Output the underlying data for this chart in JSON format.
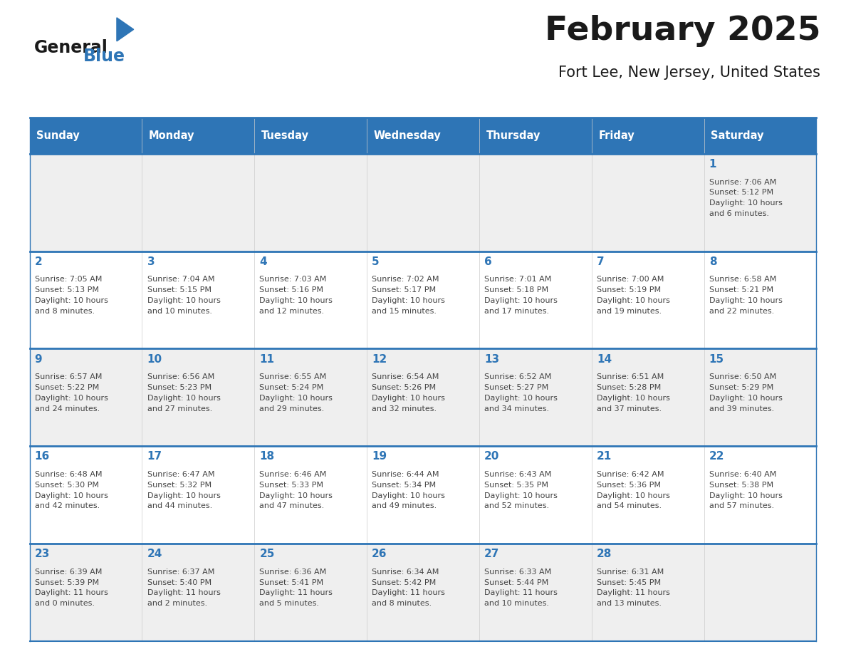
{
  "title": "February 2025",
  "subtitle": "Fort Lee, New Jersey, United States",
  "header_bg": "#2E75B6",
  "header_text_color": "#FFFFFF",
  "weekdays": [
    "Sunday",
    "Monday",
    "Tuesday",
    "Wednesday",
    "Thursday",
    "Friday",
    "Saturday"
  ],
  "background_color": "#FFFFFF",
  "cell_bg_odd_row": "#EFEFEF",
  "cell_bg_even_row": "#FFFFFF",
  "day_number_color": "#2E75B6",
  "text_color": "#444444",
  "line_color": "#2E75B6",
  "logo_general_color": "#1a1a1a",
  "logo_blue_color": "#2E75B6",
  "title_color": "#1a1a1a",
  "calendar": [
    [
      {
        "day": null,
        "info": null
      },
      {
        "day": null,
        "info": null
      },
      {
        "day": null,
        "info": null
      },
      {
        "day": null,
        "info": null
      },
      {
        "day": null,
        "info": null
      },
      {
        "day": null,
        "info": null
      },
      {
        "day": 1,
        "info": "Sunrise: 7:06 AM\nSunset: 5:12 PM\nDaylight: 10 hours\nand 6 minutes."
      }
    ],
    [
      {
        "day": 2,
        "info": "Sunrise: 7:05 AM\nSunset: 5:13 PM\nDaylight: 10 hours\nand 8 minutes."
      },
      {
        "day": 3,
        "info": "Sunrise: 7:04 AM\nSunset: 5:15 PM\nDaylight: 10 hours\nand 10 minutes."
      },
      {
        "day": 4,
        "info": "Sunrise: 7:03 AM\nSunset: 5:16 PM\nDaylight: 10 hours\nand 12 minutes."
      },
      {
        "day": 5,
        "info": "Sunrise: 7:02 AM\nSunset: 5:17 PM\nDaylight: 10 hours\nand 15 minutes."
      },
      {
        "day": 6,
        "info": "Sunrise: 7:01 AM\nSunset: 5:18 PM\nDaylight: 10 hours\nand 17 minutes."
      },
      {
        "day": 7,
        "info": "Sunrise: 7:00 AM\nSunset: 5:19 PM\nDaylight: 10 hours\nand 19 minutes."
      },
      {
        "day": 8,
        "info": "Sunrise: 6:58 AM\nSunset: 5:21 PM\nDaylight: 10 hours\nand 22 minutes."
      }
    ],
    [
      {
        "day": 9,
        "info": "Sunrise: 6:57 AM\nSunset: 5:22 PM\nDaylight: 10 hours\nand 24 minutes."
      },
      {
        "day": 10,
        "info": "Sunrise: 6:56 AM\nSunset: 5:23 PM\nDaylight: 10 hours\nand 27 minutes."
      },
      {
        "day": 11,
        "info": "Sunrise: 6:55 AM\nSunset: 5:24 PM\nDaylight: 10 hours\nand 29 minutes."
      },
      {
        "day": 12,
        "info": "Sunrise: 6:54 AM\nSunset: 5:26 PM\nDaylight: 10 hours\nand 32 minutes."
      },
      {
        "day": 13,
        "info": "Sunrise: 6:52 AM\nSunset: 5:27 PM\nDaylight: 10 hours\nand 34 minutes."
      },
      {
        "day": 14,
        "info": "Sunrise: 6:51 AM\nSunset: 5:28 PM\nDaylight: 10 hours\nand 37 minutes."
      },
      {
        "day": 15,
        "info": "Sunrise: 6:50 AM\nSunset: 5:29 PM\nDaylight: 10 hours\nand 39 minutes."
      }
    ],
    [
      {
        "day": 16,
        "info": "Sunrise: 6:48 AM\nSunset: 5:30 PM\nDaylight: 10 hours\nand 42 minutes."
      },
      {
        "day": 17,
        "info": "Sunrise: 6:47 AM\nSunset: 5:32 PM\nDaylight: 10 hours\nand 44 minutes."
      },
      {
        "day": 18,
        "info": "Sunrise: 6:46 AM\nSunset: 5:33 PM\nDaylight: 10 hours\nand 47 minutes."
      },
      {
        "day": 19,
        "info": "Sunrise: 6:44 AM\nSunset: 5:34 PM\nDaylight: 10 hours\nand 49 minutes."
      },
      {
        "day": 20,
        "info": "Sunrise: 6:43 AM\nSunset: 5:35 PM\nDaylight: 10 hours\nand 52 minutes."
      },
      {
        "day": 21,
        "info": "Sunrise: 6:42 AM\nSunset: 5:36 PM\nDaylight: 10 hours\nand 54 minutes."
      },
      {
        "day": 22,
        "info": "Sunrise: 6:40 AM\nSunset: 5:38 PM\nDaylight: 10 hours\nand 57 minutes."
      }
    ],
    [
      {
        "day": 23,
        "info": "Sunrise: 6:39 AM\nSunset: 5:39 PM\nDaylight: 11 hours\nand 0 minutes."
      },
      {
        "day": 24,
        "info": "Sunrise: 6:37 AM\nSunset: 5:40 PM\nDaylight: 11 hours\nand 2 minutes."
      },
      {
        "day": 25,
        "info": "Sunrise: 6:36 AM\nSunset: 5:41 PM\nDaylight: 11 hours\nand 5 minutes."
      },
      {
        "day": 26,
        "info": "Sunrise: 6:34 AM\nSunset: 5:42 PM\nDaylight: 11 hours\nand 8 minutes."
      },
      {
        "day": 27,
        "info": "Sunrise: 6:33 AM\nSunset: 5:44 PM\nDaylight: 11 hours\nand 10 minutes."
      },
      {
        "day": 28,
        "info": "Sunrise: 6:31 AM\nSunset: 5:45 PM\nDaylight: 11 hours\nand 13 minutes."
      },
      {
        "day": null,
        "info": null
      }
    ]
  ]
}
